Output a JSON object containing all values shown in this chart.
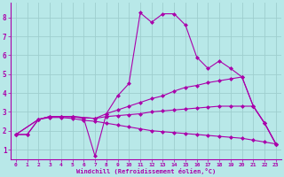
{
  "xlabel": "Windchill (Refroidissement éolien,°C)",
  "background_color": "#b8e8e8",
  "grid_color": "#9ecece",
  "line_color": "#aa00aa",
  "xlim": [
    -0.5,
    23.5
  ],
  "ylim": [
    0.5,
    8.8
  ],
  "xticks": [
    0,
    1,
    2,
    3,
    4,
    5,
    6,
    7,
    8,
    9,
    10,
    11,
    12,
    13,
    14,
    15,
    16,
    17,
    18,
    19,
    20,
    21,
    22,
    23
  ],
  "yticks": [
    1,
    2,
    3,
    4,
    5,
    6,
    7,
    8
  ],
  "lines": [
    {
      "x": [
        0,
        1,
        2,
        3,
        4,
        5,
        6,
        7,
        8,
        9,
        10,
        11,
        12,
        13,
        14,
        15,
        16,
        17,
        18,
        19,
        20,
        21,
        22,
        23
      ],
      "y": [
        1.8,
        1.8,
        2.6,
        2.75,
        2.75,
        2.75,
        2.65,
        0.65,
        2.9,
        3.85,
        4.5,
        8.25,
        7.75,
        8.2,
        8.2,
        7.6,
        5.9,
        5.3,
        5.7,
        5.3,
        4.85,
        3.3,
        2.4,
        1.3
      ]
    },
    {
      "x": [
        0,
        2,
        3,
        4,
        5,
        7,
        8,
        9,
        10,
        11,
        12,
        13,
        14,
        15,
        16,
        17,
        18,
        19,
        20,
        21,
        22,
        23
      ],
      "y": [
        1.8,
        2.6,
        2.75,
        2.75,
        2.75,
        2.65,
        2.9,
        3.1,
        3.3,
        3.5,
        3.7,
        3.85,
        4.1,
        4.3,
        4.4,
        4.55,
        4.65,
        4.75,
        4.85,
        3.3,
        2.4,
        1.3
      ]
    },
    {
      "x": [
        0,
        2,
        3,
        4,
        5,
        7,
        8,
        9,
        10,
        11,
        12,
        13,
        14,
        15,
        16,
        17,
        18,
        19,
        20,
        21,
        22,
        23
      ],
      "y": [
        1.8,
        2.6,
        2.75,
        2.75,
        2.75,
        2.65,
        2.75,
        2.8,
        2.85,
        2.9,
        3.0,
        3.05,
        3.1,
        3.15,
        3.2,
        3.25,
        3.3,
        3.3,
        3.3,
        3.3,
        2.4,
        1.3
      ]
    },
    {
      "x": [
        0,
        1,
        2,
        3,
        4,
        5,
        6,
        7,
        8,
        9,
        10,
        11,
        12,
        13,
        14,
        15,
        16,
        17,
        18,
        19,
        20,
        21,
        22,
        23
      ],
      "y": [
        1.8,
        1.8,
        2.6,
        2.7,
        2.7,
        2.65,
        2.55,
        2.5,
        2.4,
        2.3,
        2.2,
        2.1,
        2.0,
        1.95,
        1.9,
        1.85,
        1.8,
        1.75,
        1.7,
        1.65,
        1.6,
        1.5,
        1.4,
        1.3
      ]
    }
  ]
}
